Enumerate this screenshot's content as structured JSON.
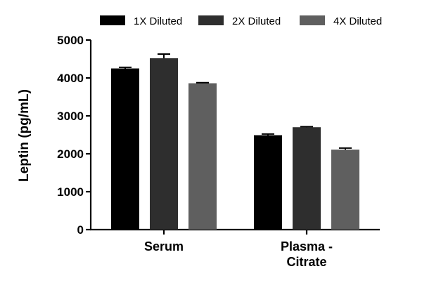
{
  "chart_data": {
    "type": "bar",
    "title": "",
    "xlabel": "",
    "ylabel": "Leptin (pg/mL)",
    "ylim": [
      0,
      5000
    ],
    "yticks": [
      "0",
      "1000",
      "2000",
      "3000",
      "4000",
      "5000"
    ],
    "categories": [
      [
        "Serum"
      ],
      [
        "Plasma -",
        "Citrate"
      ]
    ],
    "series": [
      {
        "name": "1X Diluted",
        "color": "#000000",
        "values": [
          4250,
          2490
        ],
        "errors": [
          30,
          30
        ]
      },
      {
        "name": "2X Diluted",
        "color": "#2e2e2e",
        "values": [
          4520,
          2700
        ],
        "errors": [
          110,
          15
        ]
      },
      {
        "name": "4X Diluted",
        "color": "#5f5f5f",
        "values": [
          3860,
          2110
        ],
        "errors": [
          15,
          40
        ]
      }
    ],
    "legend_position": "top",
    "grid": false,
    "error_bars": true
  }
}
